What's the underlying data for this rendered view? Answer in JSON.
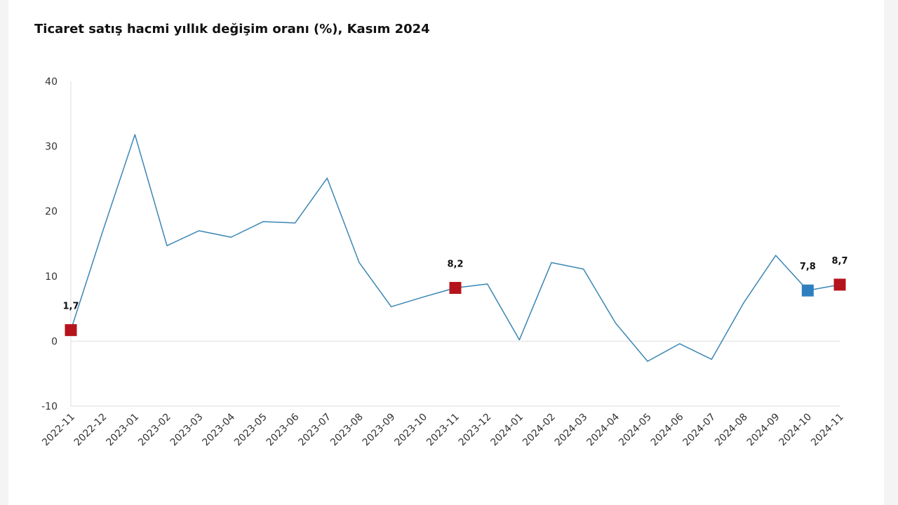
{
  "title": "Ticaret satış hacmi yıllık değişim oranı (%), Kasım 2024",
  "chart_data": {
    "type": "line",
    "title": "Ticaret satış hacmi yıllık değişim oranı (%), Kasım 2024",
    "xlabel": "",
    "ylabel": "",
    "ylim": [
      -10,
      40
    ],
    "yticks": [
      -10,
      0,
      10,
      20,
      30,
      40
    ],
    "grid": false,
    "x": [
      "2022-11",
      "2022-12",
      "2023-01",
      "2023-02",
      "2023-03",
      "2023-04",
      "2023-05",
      "2023-06",
      "2023-07",
      "2023-08",
      "2023-09",
      "2023-10",
      "2023-11",
      "2023-12",
      "2024-01",
      "2024-02",
      "2024-03",
      "2024-04",
      "2024-05",
      "2024-06",
      "2024-07",
      "2024-08",
      "2024-09",
      "2024-10",
      "2024-11"
    ],
    "series": [
      {
        "values": [
          1.7,
          17.0,
          31.8,
          14.7,
          17.0,
          16.0,
          18.4,
          18.2,
          25.1,
          12.1,
          5.3,
          6.8,
          8.2,
          8.8,
          0.2,
          12.1,
          11.1,
          2.8,
          -3.1,
          -0.4,
          -2.8,
          5.9,
          13.2,
          7.8,
          8.7
        ],
        "color": "#3a86b4"
      }
    ],
    "highlights": [
      {
        "index": 0,
        "label": "1,7",
        "color": "#b5141c"
      },
      {
        "index": 12,
        "label": "8,2",
        "color": "#b5141c"
      },
      {
        "index": 23,
        "label": "7,8",
        "color": "#2f7fbf"
      },
      {
        "index": 24,
        "label": "8,7",
        "color": "#b5141c"
      }
    ],
    "zero_line_color": "#dddddd",
    "axis_color": "#dddddd"
  }
}
